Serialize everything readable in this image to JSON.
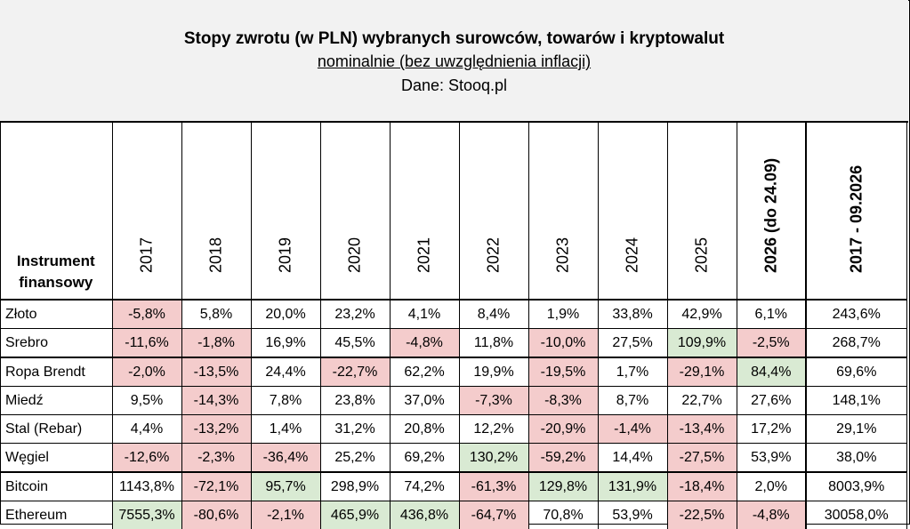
{
  "header": {
    "title": "Stopy zwrotu (w PLN) wybranych surowców, towarów i kryptowalut",
    "subtitle": "nominalnie (bez uwzględnienia inflacji)",
    "source": "Dane: Stooq.pl"
  },
  "table": {
    "instrument_header_line1": "Instrument",
    "instrument_header_line2": "finansowy",
    "columns": [
      "2017",
      "2018",
      "2019",
      "2020",
      "2021",
      "2022",
      "2023",
      "2024",
      "2025",
      "2026 (do 24.09)",
      "2017 - 09.2026"
    ],
    "colors": {
      "negative": "#f4cccc",
      "best": "#d9ead3"
    },
    "rows": [
      {
        "name": "Złoto",
        "values": [
          "-5,8%",
          "5,8%",
          "20,0%",
          "23,2%",
          "4,1%",
          "8,4%",
          "1,9%",
          "33,8%",
          "42,9%",
          "6,1%",
          "243,6%"
        ],
        "shade": [
          "r",
          "",
          "",
          "",
          "",
          "",
          "",
          "",
          "",
          "",
          ""
        ]
      },
      {
        "name": "Srebro",
        "values": [
          "-11,6%",
          "-1,8%",
          "16,9%",
          "45,5%",
          "-4,8%",
          "11,8%",
          "-10,0%",
          "27,5%",
          "109,9%",
          "-2,5%",
          "268,7%"
        ],
        "shade": [
          "r",
          "r",
          "",
          "",
          "r",
          "",
          "r",
          "",
          "g",
          "r",
          ""
        ]
      },
      {
        "name": "Ropa Brendt",
        "values": [
          "-2,0%",
          "-13,5%",
          "24,4%",
          "-22,7%",
          "62,2%",
          "19,9%",
          "-19,5%",
          "1,7%",
          "-29,1%",
          "84,4%",
          "69,6%"
        ],
        "shade": [
          "r",
          "r",
          "",
          "r",
          "",
          "",
          "r",
          "",
          "r",
          "g",
          ""
        ]
      },
      {
        "name": "Miedź",
        "values": [
          "9,5%",
          "-14,3%",
          "7,8%",
          "23,8%",
          "37,0%",
          "-7,3%",
          "-8,3%",
          "8,7%",
          "22,7%",
          "27,6%",
          "148,1%"
        ],
        "shade": [
          "",
          "r",
          "",
          "",
          "",
          "r",
          "r",
          "",
          "",
          "",
          ""
        ]
      },
      {
        "name": "Stal (Rebar)",
        "values": [
          "4,4%",
          "-13,2%",
          "1,4%",
          "31,2%",
          "20,8%",
          "12,2%",
          "-20,9%",
          "-1,4%",
          "-13,4%",
          "17,2%",
          "29,1%"
        ],
        "shade": [
          "",
          "r",
          "",
          "",
          "",
          "",
          "r",
          "r",
          "r",
          "",
          ""
        ]
      },
      {
        "name": "Węgiel",
        "values": [
          "-12,6%",
          "-2,3%",
          "-36,4%",
          "25,2%",
          "69,2%",
          "130,2%",
          "-59,2%",
          "14,4%",
          "-27,5%",
          "53,9%",
          "38,0%"
        ],
        "shade": [
          "r",
          "r",
          "r",
          "",
          "",
          "g",
          "r",
          "",
          "r",
          "",
          ""
        ]
      },
      {
        "name": "Bitcoin",
        "values": [
          "1143,8%",
          "-72,1%",
          "95,7%",
          "298,9%",
          "74,2%",
          "-61,3%",
          "129,8%",
          "131,9%",
          "-18,4%",
          "2,0%",
          "8003,9%"
        ],
        "shade": [
          "",
          "r",
          "g",
          "",
          "",
          "r",
          "g",
          "g",
          "r",
          "",
          ""
        ]
      },
      {
        "name": "Ethereum",
        "values": [
          "7555,3%",
          "-80,6%",
          "-2,1%",
          "465,9%",
          "436,8%",
          "-64,7%",
          "70,8%",
          "53,9%",
          "-22,5%",
          "-4,8%",
          "30058,0%"
        ],
        "shade": [
          "g",
          "r",
          "r",
          "g",
          "g",
          "r",
          "",
          "",
          "r",
          "r",
          ""
        ]
      }
    ]
  }
}
